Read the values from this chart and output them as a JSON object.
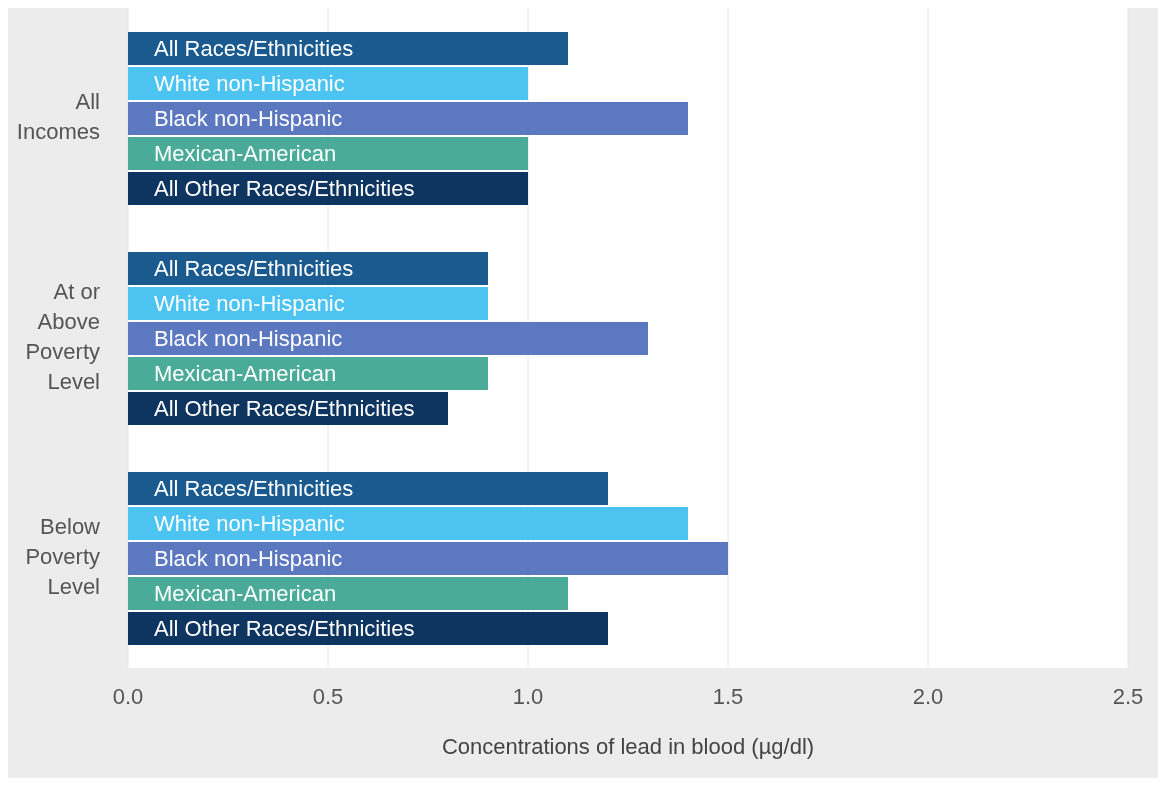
{
  "chart_data": {
    "type": "bar",
    "orientation": "horizontal",
    "xlabel": "Concentrations of lead in blood (µg/dl)",
    "categories": [
      "All Incomes",
      "At or Above Poverty Level",
      "Below Poverty Level"
    ],
    "series": [
      {
        "name": "All Races/Ethnicities",
        "color": "#1b5a8e",
        "values": [
          1.1,
          0.9,
          1.2
        ]
      },
      {
        "name": "White non-Hispanic",
        "color": "#4cc3f0",
        "values": [
          1.0,
          0.9,
          1.4
        ]
      },
      {
        "name": "Black non-Hispanic",
        "color": "#5b78c0",
        "values": [
          1.4,
          1.3,
          1.5
        ]
      },
      {
        "name": "Mexican-American",
        "color": "#4aab99",
        "values": [
          1.0,
          0.9,
          1.1
        ]
      },
      {
        "name": "All Other Races/Ethnicities",
        "color": "#0d3560",
        "values": [
          1.0,
          0.8,
          1.2
        ]
      }
    ],
    "xlim": [
      0,
      2.5
    ],
    "xticks": [
      {
        "value": 0,
        "label": "0.0"
      },
      {
        "value": 0.5,
        "label": "0.5"
      },
      {
        "value": 1,
        "label": "1.0"
      },
      {
        "value": 1.5,
        "label": "1.5"
      },
      {
        "value": 2,
        "label": "2.0"
      },
      {
        "value": 2.5,
        "label": "2.5"
      }
    ],
    "grid": "x",
    "legend": false
  }
}
